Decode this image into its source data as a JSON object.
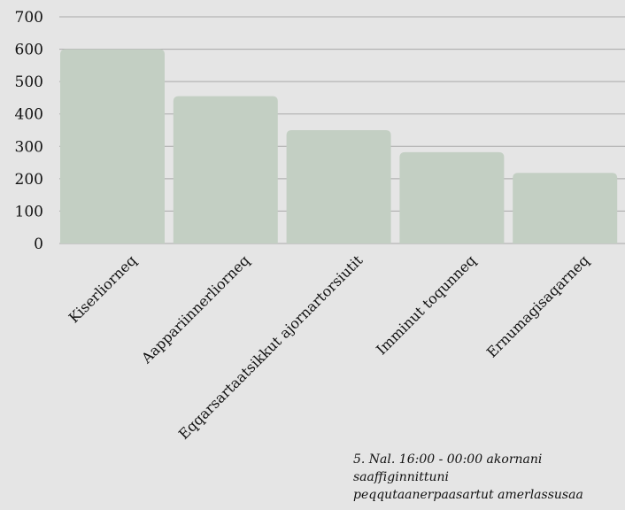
{
  "chart_data": {
    "type": "bar",
    "categories": [
      "Kiserliorneq",
      "Aappariinnerliorneq",
      "Eqqarsartaatsikkut ajornartorsiutit",
      "Imminut toqunneq",
      "Ernumagisaqarneq"
    ],
    "values": [
      600,
      455,
      350,
      282,
      218
    ],
    "yticks": [
      0,
      100,
      200,
      300,
      400,
      500,
      600,
      700
    ],
    "ylim": [
      0,
      700
    ],
    "grid": true,
    "bar_color": "#c3cfc3",
    "background": "#e5e5e5"
  },
  "caption": "5. Nal. 16:00 - 00:00 akornani\nsaaffiginnittuni\npeqqutaanerpaasartut amerlassusaa"
}
